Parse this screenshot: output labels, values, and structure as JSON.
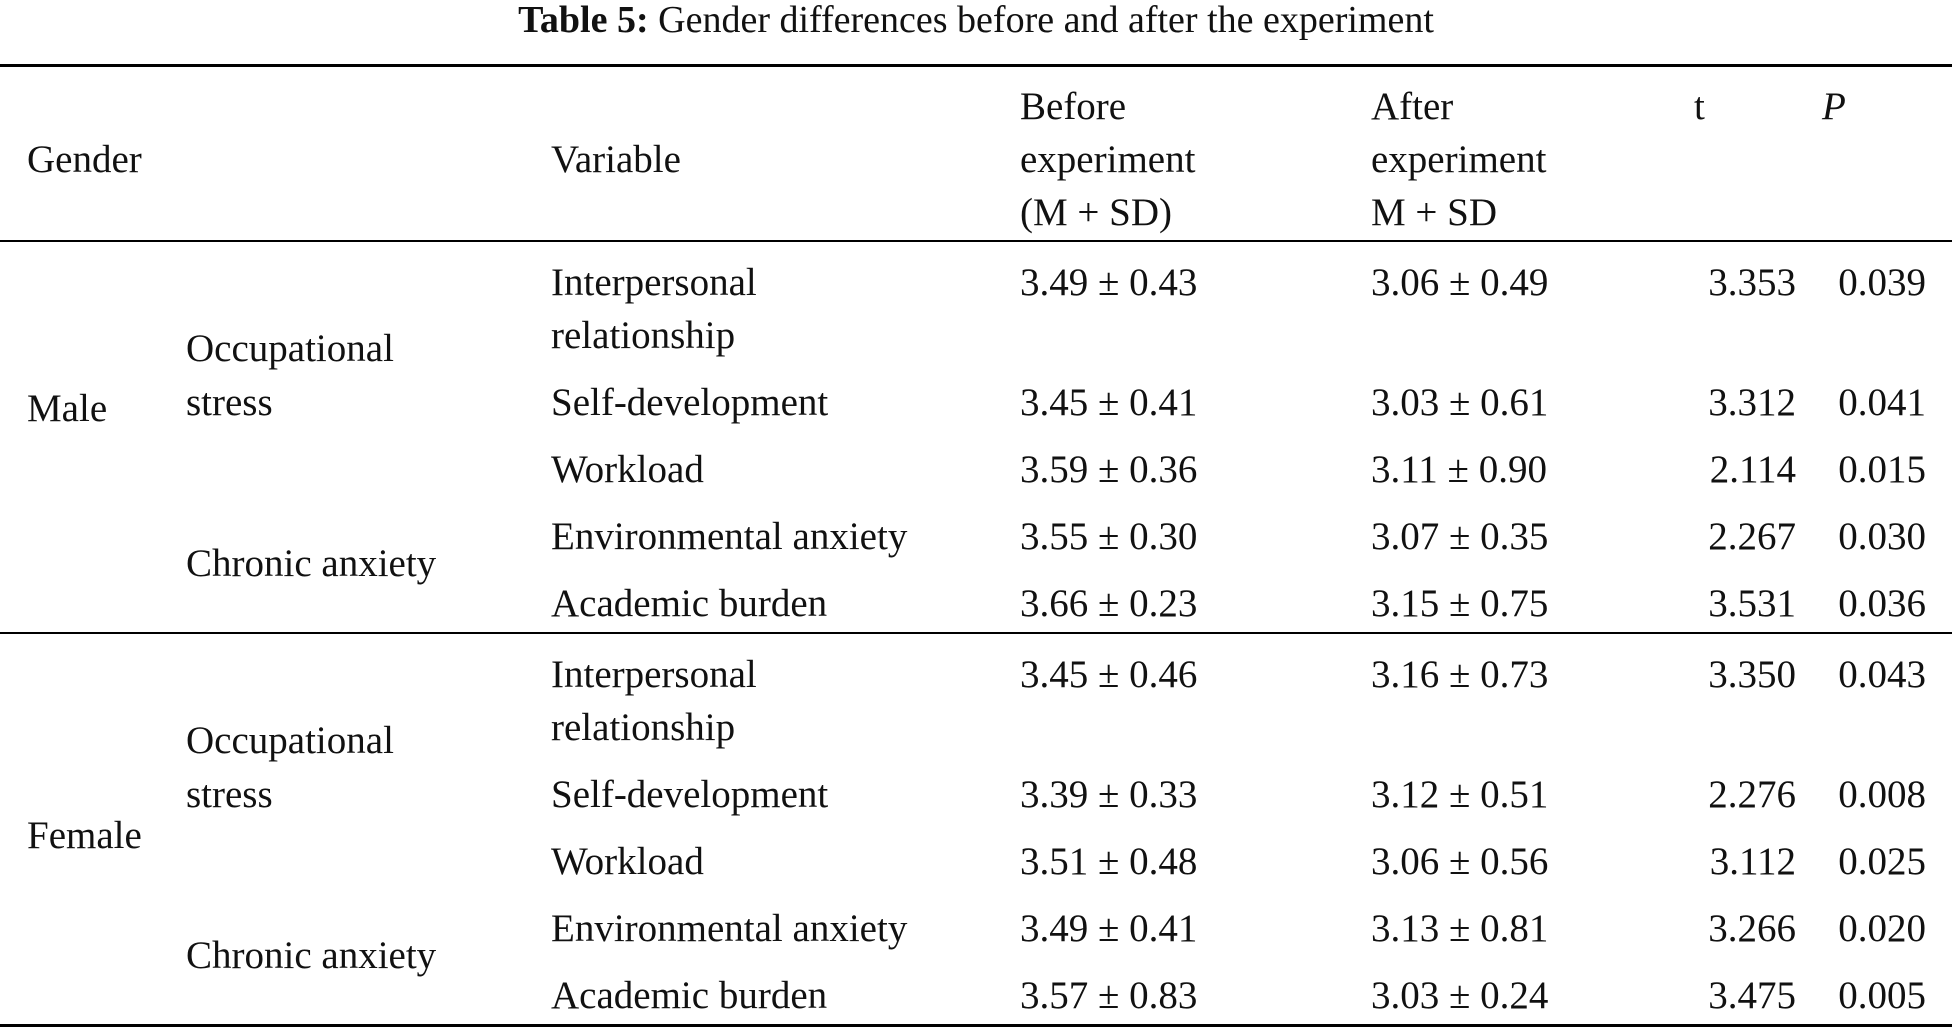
{
  "caption": {
    "label": "Table 5:",
    "text": "Gender differences before and after the experiment"
  },
  "header": {
    "gender": "Gender",
    "variable": "Variable",
    "before": [
      "Before",
      "experiment",
      "(M + SD)"
    ],
    "after": [
      "After",
      "experiment",
      "M + SD"
    ],
    "t": "t",
    "p": "P"
  },
  "groups": [
    {
      "gender": "Male",
      "categories": [
        {
          "lines": [
            "Occupational",
            "stress"
          ]
        },
        {
          "lines": [
            "Chronic anxiety"
          ]
        }
      ],
      "rows": [
        {
          "variable": [
            "Interpersonal",
            "relationship"
          ],
          "before": "3.49 ± 0.43",
          "after": "3.06 ± 0.49",
          "t": "3.353",
          "p": "0.039"
        },
        {
          "variable": [
            "Self-development"
          ],
          "before": "3.45 ± 0.41",
          "after": "3.03 ± 0.61",
          "t": "3.312",
          "p": "0.041"
        },
        {
          "variable": [
            "Workload"
          ],
          "before": "3.59 ± 0.36",
          "after": "3.11 ± 0.90",
          "t": "2.114",
          "p": "0.015"
        },
        {
          "variable": [
            "Environmental anxiety"
          ],
          "before": "3.55 ± 0.30",
          "after": "3.07 ± 0.35",
          "t": "2.267",
          "p": "0.030"
        },
        {
          "variable": [
            "Academic burden"
          ],
          "before": "3.66 ± 0.23",
          "after": "3.15 ± 0.75",
          "t": "3.531",
          "p": "0.036"
        }
      ]
    },
    {
      "gender": "Female",
      "categories": [
        {
          "lines": [
            "Occupational",
            "stress"
          ]
        },
        {
          "lines": [
            "Chronic anxiety"
          ]
        }
      ],
      "rows": [
        {
          "variable": [
            "Interpersonal",
            "relationship"
          ],
          "before": "3.45 ± 0.46",
          "after": "3.16 ± 0.73",
          "t": "3.350",
          "p": "0.043"
        },
        {
          "variable": [
            "Self-development"
          ],
          "before": "3.39 ± 0.33",
          "after": "3.12 ± 0.51",
          "t": "2.276",
          "p": "0.008"
        },
        {
          "variable": [
            "Workload"
          ],
          "before": "3.51 ± 0.48",
          "after": "3.06 ± 0.56",
          "t": "3.112",
          "p": "0.025"
        },
        {
          "variable": [
            "Environmental anxiety"
          ],
          "before": "3.49 ± 0.41",
          "after": "3.13 ± 0.81",
          "t": "3.266",
          "p": "0.020"
        },
        {
          "variable": [
            "Academic burden"
          ],
          "before": "3.57 ± 0.83",
          "after": "3.03 ± 0.24",
          "t": "3.475",
          "p": "0.005"
        }
      ]
    }
  ]
}
